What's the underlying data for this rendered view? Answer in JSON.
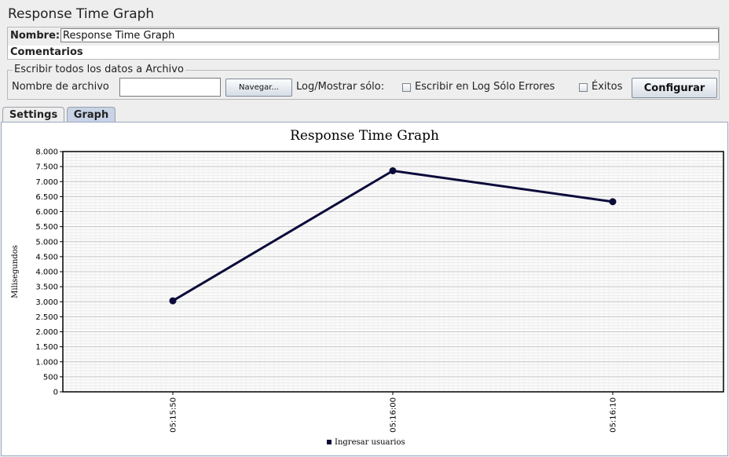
{
  "page": {
    "title": "Response Time Graph",
    "name_label": "Nombre:",
    "name_value": "Response Time Graph",
    "comments_label": "Comentarios"
  },
  "file_section": {
    "legend": "Escribir todos los datos a Archivo",
    "filename_label": "Nombre de archivo",
    "filename_value": "",
    "browse_button": "Navegar...",
    "log_label": "Log/Mostrar sólo:",
    "errors_label": "Escribir en Log Sólo Errores",
    "errors_checked": false,
    "success_label": "Éxitos",
    "success_checked": false,
    "configure_button": "Configurar"
  },
  "tabs": [
    {
      "label": "Settings",
      "active": false
    },
    {
      "label": "Graph",
      "active": true
    }
  ],
  "chart_data": {
    "type": "line",
    "title": "Response Time Graph",
    "ylabel": "Milisegundos",
    "xlabel": "",
    "ylim": [
      0,
      8000
    ],
    "yticks": [
      0,
      500,
      1000,
      1500,
      2000,
      2500,
      3000,
      3500,
      4000,
      4500,
      5000,
      5500,
      6000,
      6500,
      7000,
      7500,
      8000
    ],
    "ytick_labels": [
      "0",
      "500",
      "1.000",
      "1.500",
      "2.000",
      "2.500",
      "3.000",
      "3.500",
      "4.000",
      "4.500",
      "5.000",
      "5.500",
      "6.000",
      "6.500",
      "7.000",
      "7.500",
      "8.000"
    ],
    "x": [
      "05:15:50",
      "05:16:00",
      "05:16:10"
    ],
    "grid": true,
    "legend_placement": "bottom",
    "series": [
      {
        "name": "Ingresar usuarios",
        "color": "#0b0b3b",
        "values": [
          3030,
          7360,
          6330
        ]
      }
    ]
  }
}
